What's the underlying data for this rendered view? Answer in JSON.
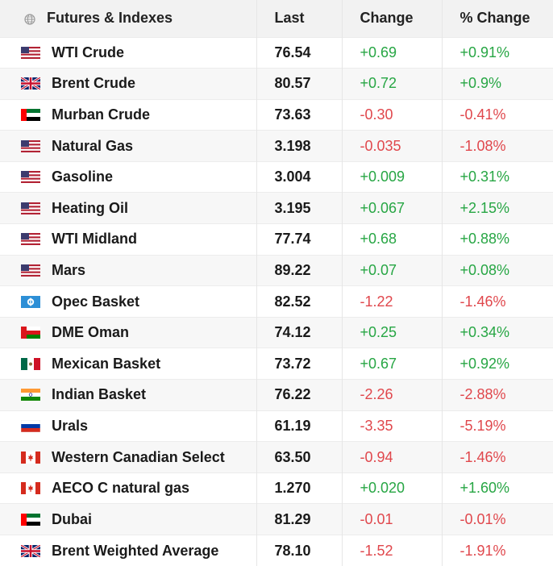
{
  "header": {
    "name": "Futures & Indexes",
    "last": "Last",
    "change": "Change",
    "pct": "% Change"
  },
  "rows": [
    {
      "name": "WTI Crude",
      "flag": "us",
      "last": "76.54",
      "change": "+0.69",
      "pct": "+0.91%",
      "dir": "pos"
    },
    {
      "name": "Brent Crude",
      "flag": "uk",
      "last": "80.57",
      "change": "+0.72",
      "pct": "+0.9%",
      "dir": "pos"
    },
    {
      "name": "Murban Crude",
      "flag": "ae",
      "last": "73.63",
      "change": "-0.30",
      "pct": "-0.41%",
      "dir": "neg"
    },
    {
      "name": "Natural Gas",
      "flag": "us",
      "last": "3.198",
      "change": "-0.035",
      "pct": "-1.08%",
      "dir": "neg"
    },
    {
      "name": "Gasoline",
      "flag": "us",
      "last": "3.004",
      "change": "+0.009",
      "pct": "+0.31%",
      "dir": "pos"
    },
    {
      "name": "Heating Oil",
      "flag": "us",
      "last": "3.195",
      "change": "+0.067",
      "pct": "+2.15%",
      "dir": "pos"
    },
    {
      "name": "WTI Midland",
      "flag": "us",
      "last": "77.74",
      "change": "+0.68",
      "pct": "+0.88%",
      "dir": "pos"
    },
    {
      "name": "Mars",
      "flag": "us",
      "last": "89.22",
      "change": "+0.07",
      "pct": "+0.08%",
      "dir": "pos"
    },
    {
      "name": "Opec Basket",
      "flag": "opec",
      "last": "82.52",
      "change": "-1.22",
      "pct": "-1.46%",
      "dir": "neg"
    },
    {
      "name": "DME Oman",
      "flag": "om",
      "last": "74.12",
      "change": "+0.25",
      "pct": "+0.34%",
      "dir": "pos"
    },
    {
      "name": "Mexican Basket",
      "flag": "mx",
      "last": "73.72",
      "change": "+0.67",
      "pct": "+0.92%",
      "dir": "pos"
    },
    {
      "name": "Indian Basket",
      "flag": "in",
      "last": "76.22",
      "change": "-2.26",
      "pct": "-2.88%",
      "dir": "neg"
    },
    {
      "name": "Urals",
      "flag": "ru",
      "last": "61.19",
      "change": "-3.35",
      "pct": "-5.19%",
      "dir": "neg"
    },
    {
      "name": "Western Canadian Select",
      "flag": "ca",
      "last": "63.50",
      "change": "-0.94",
      "pct": "-1.46%",
      "dir": "neg"
    },
    {
      "name": "AECO C natural gas",
      "flag": "ca",
      "last": "1.270",
      "change": "+0.020",
      "pct": "+1.60%",
      "dir": "pos"
    },
    {
      "name": "Dubai",
      "flag": "ae",
      "last": "81.29",
      "change": "-0.01",
      "pct": "-0.01%",
      "dir": "neg"
    },
    {
      "name": "Brent Weighted Average",
      "flag": "uk",
      "last": "78.10",
      "change": "-1.52",
      "pct": "-1.91%",
      "dir": "neg"
    }
  ],
  "colors": {
    "positive": "#27a644",
    "negative": "#e0474c",
    "header_bg": "#f2f2f2"
  }
}
